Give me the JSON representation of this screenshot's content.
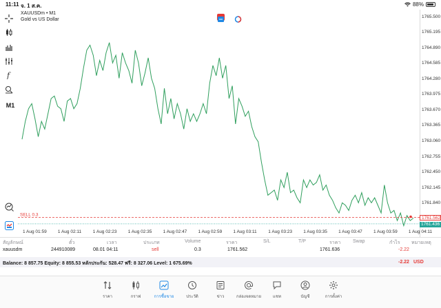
{
  "status_bar": {
    "time": "11:11",
    "date": "จ. 1 ส.ค.",
    "battery": "88%",
    "battery_level": 0.88
  },
  "chart": {
    "symbol_title": "XAUUSDm • M1",
    "symbol_subtitle": "Gold vs US Dollar",
    "sell_label": "SELL 0.3",
    "current_bid": "1761.562",
    "current_ask": "1761.436",
    "colors": {
      "line": "#2e9e5c",
      "sell": "#e53935",
      "ask": "#26a69a",
      "grid": "#ececec"
    }
  },
  "chart_data": {
    "type": "line",
    "series": [
      {
        "values": [
          1763.1,
          1763.45,
          1763.7,
          1763.8,
          1763.5,
          1763.15,
          1763.45,
          1763.3,
          1763.6,
          1763.9,
          1763.95,
          1763.75,
          1763.7,
          1763.45,
          1763.85,
          1763.9,
          1763.7,
          1763.8,
          1764.1,
          1764.5,
          1764.85,
          1764.95,
          1764.75,
          1764.35,
          1764.65,
          1764.45,
          1764.8,
          1765.0,
          1764.6,
          1764.75,
          1764.3,
          1764.8,
          1764.6,
          1764.45,
          1764.2,
          1764.85,
          1764.6,
          1764.15,
          1764.4,
          1764.7,
          1764.3,
          1764.1,
          1763.7,
          1763.4,
          1764.1,
          1763.6,
          1763.9,
          1763.5,
          1763.8,
          1763.6,
          1763.3,
          1763.7,
          1763.45,
          1763.6,
          1763.45,
          1763.6,
          1763.8,
          1763.6,
          1764.2,
          1764.55,
          1764.35,
          1764.7,
          1764.3,
          1764.55,
          1763.9,
          1764.15,
          1763.4,
          1763.9,
          1763.75,
          1763.55,
          1763.65,
          1763.35,
          1763.15,
          1763.05,
          1762.65,
          1762.3,
          1762.0,
          1762.05,
          1762.1,
          1761.9,
          1762.3,
          1762.15,
          1762.45,
          1762.05,
          1762.1,
          1761.95,
          1761.85,
          1762.3,
          1762.15,
          1762.3,
          1762.2,
          1762.25,
          1762.4,
          1762.1,
          1762.2,
          1762.0,
          1761.9,
          1761.75,
          1761.65,
          1761.85,
          1761.8,
          1761.7,
          1761.9,
          1762.0,
          1761.85,
          1762.05,
          1761.8,
          1761.95,
          1761.85,
          1761.95,
          1761.8,
          1761.65,
          1762.2,
          1761.85,
          1761.65,
          1761.7,
          1761.5,
          1761.65,
          1761.4,
          1761.6,
          1761.5,
          1761.55
        ]
      }
    ],
    "x_ticks": [
      "1 Aug 01:59",
      "1 Aug 02:11",
      "1 Aug 02:23",
      "1 Aug 02:35",
      "1 Aug 02:47",
      "1 Aug 02:59",
      "1 Aug 03:11",
      "1 Aug 03:23",
      "1 Aug 03:35",
      "1 Aug 03:47",
      "1 Aug 03:59",
      "1 Aug 04:11"
    ],
    "y_ticks": [
      "1765.500",
      "1765.195",
      "1764.890",
      "1764.585",
      "1764.280",
      "1763.975",
      "1763.670",
      "1763.365",
      "1763.060",
      "1762.755",
      "1762.450",
      "1762.145",
      "1761.840"
    ],
    "ylim": [
      1761.34,
      1765.62
    ],
    "grid": false
  },
  "table": {
    "headers": [
      "สัญลักษณ์",
      "ตั๋ว",
      "เวลา",
      "ประเภท",
      "Volume",
      "ราคา",
      "S/L",
      "T/P",
      "ราคา",
      "Swap",
      "กำไร",
      "หมายเหตุ"
    ],
    "row": {
      "symbol": "xauusdm",
      "ticket": "244910089",
      "time": "08.01 04:11",
      "type": "sell",
      "volume": "0.3",
      "open_price": "1761.562",
      "price": "1761.636",
      "profit": "-2.22"
    }
  },
  "balance": {
    "text": "Balance: 8 857.75 Equity: 8 855.53 หลักประกัน: 528.47 ฟรี: 8 327.06 Level: 1 675.69%",
    "profit": "-2.22",
    "currency": "USD"
  },
  "nav": [
    {
      "label": "ราคา",
      "icon": "quotes-icon"
    },
    {
      "label": "กราฟ",
      "icon": "chart-icon"
    },
    {
      "label": "การซื้อขาย",
      "icon": "trade-icon",
      "active": true
    },
    {
      "label": "ประวัติ",
      "icon": "history-icon"
    },
    {
      "label": "ข่าว",
      "icon": "news-icon"
    },
    {
      "label": "กล่องจดหมาย",
      "icon": "mailbox-icon"
    },
    {
      "label": "แชท",
      "icon": "chat-icon"
    },
    {
      "label": "บัญชี",
      "icon": "account-icon"
    },
    {
      "label": "การตั้งค่า",
      "icon": "settings-icon"
    }
  ],
  "toolbar_icons": [
    "crosshair-icon",
    "candles-icon",
    "bars-icon",
    "indicators-icon",
    "function-icon",
    "objects-icon",
    "timeframe-label",
    "zoom-icon",
    "tradingview-icon"
  ],
  "timeframe": "M1"
}
